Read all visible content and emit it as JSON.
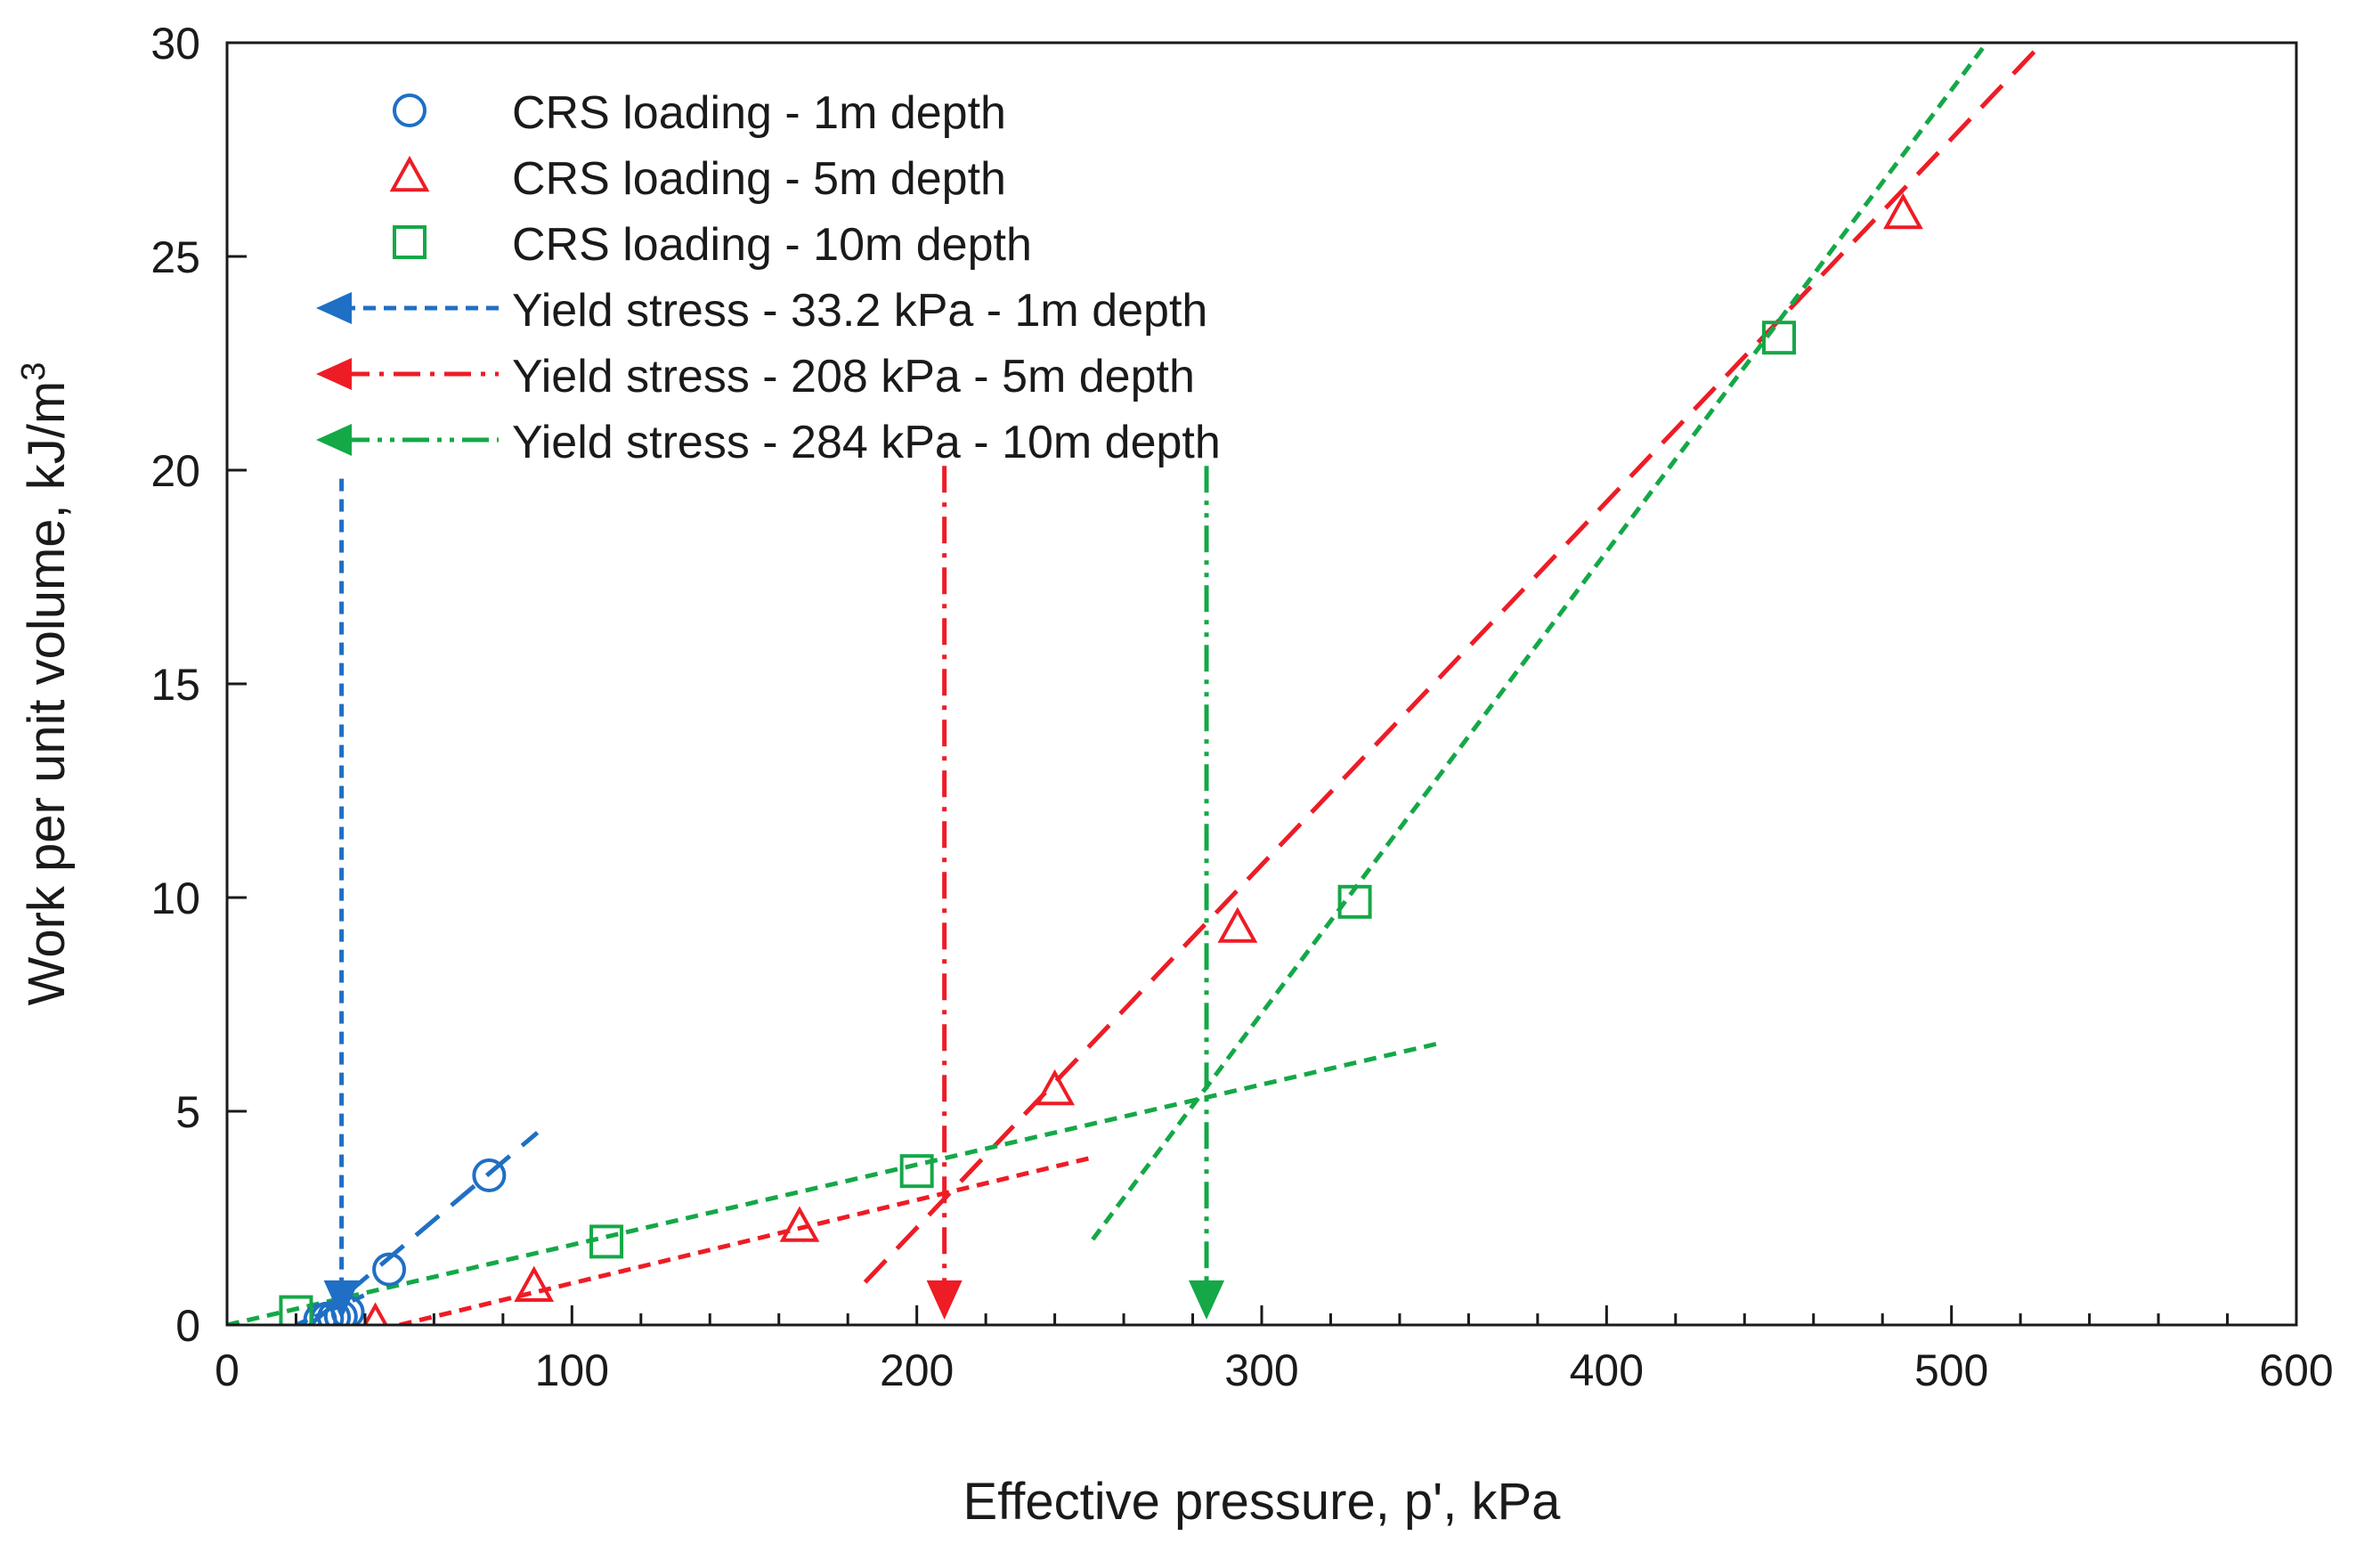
{
  "chart_data": {
    "type": "scatter",
    "title": "",
    "xlabel": "Effective pressure, p', kPa",
    "ylabel_main": "Work per unit volume, kJ/m",
    "ylabel_sup": "3",
    "xlim": [
      0,
      600
    ],
    "ylim": [
      0,
      30
    ],
    "x_ticks": [
      0,
      100,
      200,
      300,
      400,
      500,
      600
    ],
    "y_ticks": [
      0,
      5,
      10,
      15,
      20,
      25,
      30
    ],
    "x_tick_labels": [
      "0",
      "100",
      "200",
      "300",
      "400",
      "500",
      "600"
    ],
    "y_tick_labels": [
      "0",
      "5",
      "10",
      "15",
      "20",
      "25",
      "30"
    ],
    "grid": false,
    "legend_position": "top-left",
    "colors": {
      "blue": "#1f6fc5",
      "red": "#ee1c25",
      "green": "#14a847"
    },
    "series": [
      {
        "name": "CRS loading - 1m depth",
        "marker": "circle",
        "color": "#1f6fc5",
        "points": [
          [
            27,
            0.12
          ],
          [
            29,
            0.15
          ],
          [
            31,
            0.18
          ],
          [
            33,
            0.2
          ],
          [
            35,
            0.3
          ],
          [
            47,
            1.3
          ],
          [
            76,
            3.5
          ]
        ]
      },
      {
        "name": "CRS loading - 5m depth",
        "marker": "triangle",
        "color": "#ee1c25",
        "points": [
          [
            43,
            0.05
          ],
          [
            89,
            0.9
          ],
          [
            166,
            2.3
          ],
          [
            240,
            5.5
          ],
          [
            293,
            9.3
          ],
          [
            486,
            26.0
          ]
        ]
      },
      {
        "name": "CRS loading - 10m depth",
        "marker": "square",
        "color": "#14a847",
        "points": [
          [
            20,
            0.3
          ],
          [
            110,
            1.95
          ],
          [
            200,
            3.6
          ],
          [
            327,
            9.9
          ],
          [
            450,
            23.1
          ]
        ]
      }
    ],
    "trend_lines": [
      {
        "series": "1m",
        "color": "#1f6fc5",
        "dash": "long",
        "from": [
          24,
          0.0
        ],
        "to": [
          90,
          4.5
        ]
      },
      {
        "series": "1m",
        "color": "#1f6fc5",
        "dash": "short",
        "from": [
          20,
          0.0
        ],
        "to": [
          40,
          0.7
        ]
      },
      {
        "series": "5m",
        "color": "#ee1c25",
        "dash": "short",
        "from": [
          50,
          0.0
        ],
        "to": [
          250,
          3.9
        ]
      },
      {
        "series": "5m",
        "color": "#ee1c25",
        "dash": "long",
        "from": [
          185,
          1.0
        ],
        "to": [
          530,
          30.3
        ]
      },
      {
        "series": "10m",
        "color": "#14a847",
        "dash": "short",
        "from": [
          0,
          0.0
        ],
        "to": [
          352,
          6.6
        ]
      },
      {
        "series": "10m",
        "color": "#14a847",
        "dash": "short",
        "from": [
          251,
          2.0
        ],
        "to": [
          513,
          30.3
        ]
      }
    ],
    "yield_stress": [
      {
        "label": "Yield stress - 33.2 kPa - 1m depth",
        "value": 33.2,
        "color": "#1f6fc5",
        "y_top": 19.8,
        "dash": "dashed"
      },
      {
        "label": "Yield stress - 208 kPa - 5m depth",
        "value": 208,
        "color": "#ee1c25",
        "y_top": 20.1,
        "dash": "dash-dot"
      },
      {
        "label": "Yield stress - 284 kPa - 10m depth",
        "value": 284,
        "color": "#14a847",
        "y_top": 20.1,
        "dash": "dash-dot-dot"
      }
    ],
    "legend": [
      {
        "label": "CRS loading - 1m depth",
        "kind": "marker",
        "marker": "circle",
        "color": "#1f6fc5"
      },
      {
        "label": "CRS loading - 5m depth",
        "kind": "marker",
        "marker": "triangle",
        "color": "#ee1c25"
      },
      {
        "label": "CRS loading - 10m depth",
        "kind": "marker",
        "marker": "square",
        "color": "#14a847"
      },
      {
        "label": "Yield stress - 33.2 kPa - 1m depth",
        "kind": "arrow",
        "dash": "dashed",
        "color": "#1f6fc5"
      },
      {
        "label": "Yield stress - 208 kPa - 5m depth",
        "kind": "arrow",
        "dash": "dash-dot",
        "color": "#ee1c25"
      },
      {
        "label": "Yield stress - 284 kPa - 10m depth",
        "kind": "arrow",
        "dash": "dash-dot-dot",
        "color": "#14a847"
      }
    ]
  }
}
